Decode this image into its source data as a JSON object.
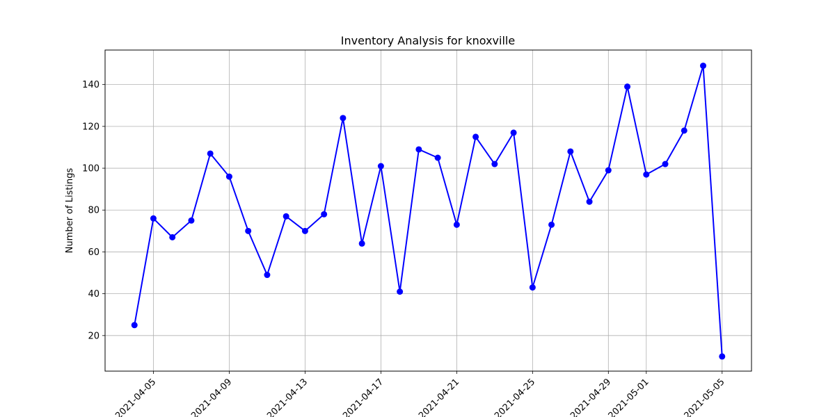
{
  "chart_data": {
    "type": "line",
    "title": "Inventory Analysis for knoxville",
    "xlabel": "",
    "ylabel": "Number of Listings",
    "x": [
      "2021-04-04",
      "2021-04-05",
      "2021-04-06",
      "2021-04-07",
      "2021-04-08",
      "2021-04-09",
      "2021-04-10",
      "2021-04-11",
      "2021-04-12",
      "2021-04-13",
      "2021-04-14",
      "2021-04-15",
      "2021-04-16",
      "2021-04-17",
      "2021-04-18",
      "2021-04-19",
      "2021-04-20",
      "2021-04-21",
      "2021-04-22",
      "2021-04-23",
      "2021-04-24",
      "2021-04-25",
      "2021-04-26",
      "2021-04-27",
      "2021-04-28",
      "2021-04-29",
      "2021-04-30",
      "2021-05-01",
      "2021-05-02",
      "2021-05-03",
      "2021-05-04",
      "2021-05-05"
    ],
    "series": [
      {
        "values": [
          25,
          76,
          67,
          75,
          107,
          96,
          70,
          49,
          77,
          70,
          78,
          124,
          64,
          101,
          41,
          109,
          105,
          73,
          115,
          102,
          117,
          43,
          73,
          108,
          84,
          99,
          139,
          97,
          102,
          118,
          149,
          10
        ]
      }
    ],
    "x_ticks": [
      "2021-04-05",
      "2021-04-09",
      "2021-04-13",
      "2021-04-17",
      "2021-04-21",
      "2021-04-25",
      "2021-04-29",
      "2021-05-01",
      "2021-05-05"
    ],
    "y_ticks": [
      20,
      40,
      60,
      80,
      100,
      120,
      140
    ],
    "xlim": [
      "2021-04-02.45",
      "2021-05-06.55"
    ],
    "ylim": [
      3,
      156.5
    ],
    "grid": true,
    "line_color": "#0000ff",
    "marker": "circle"
  }
}
